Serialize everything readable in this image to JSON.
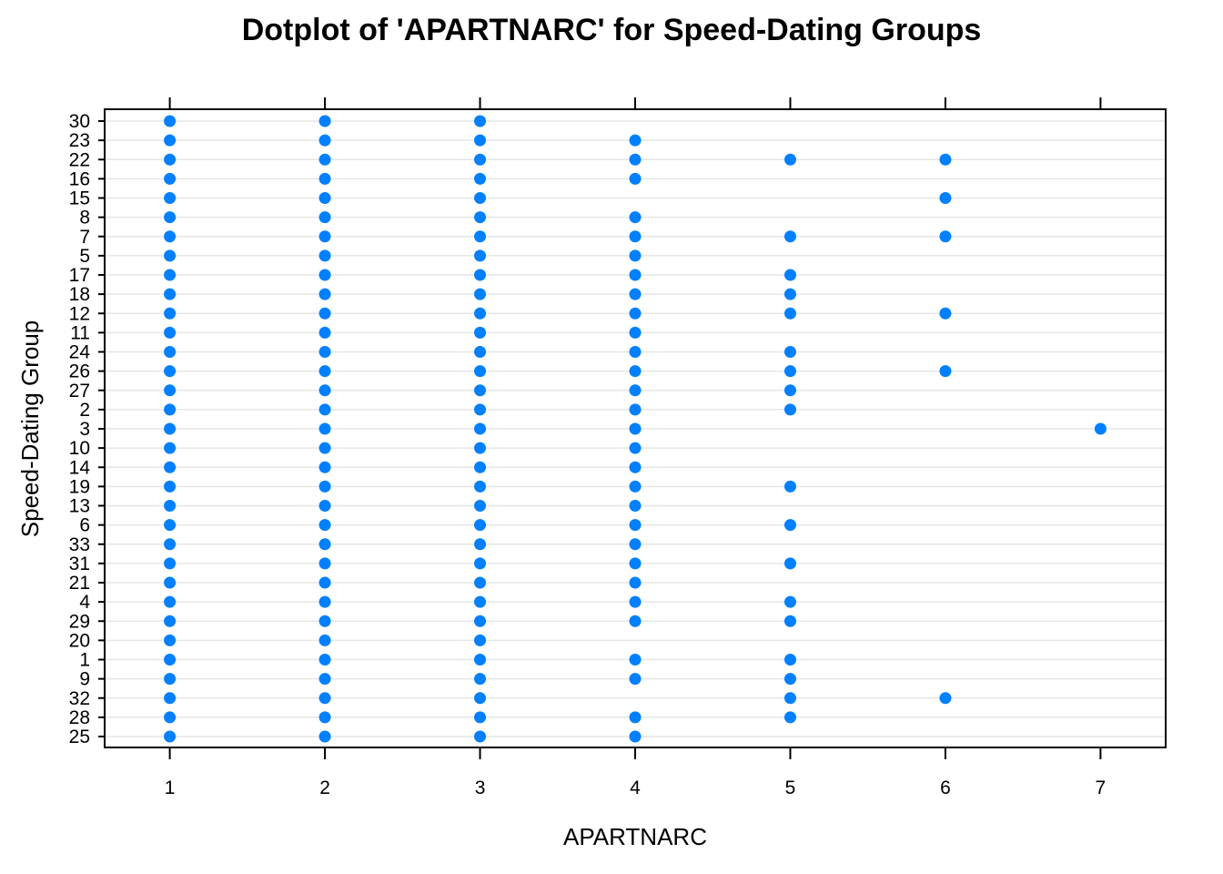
{
  "chart_data": {
    "type": "scatter",
    "subtype": "dotplot",
    "title": "Dotplot of 'APARTNARC' for Speed-Dating Groups",
    "xlabel": "APARTNARC",
    "ylabel": "Speed-Dating Group",
    "xlim": [
      0.58,
      7.42
    ],
    "x_ticks": [
      1,
      2,
      3,
      4,
      5,
      6,
      7
    ],
    "grid": true,
    "marker_color": "#0080ff",
    "groups": [
      "30",
      "23",
      "22",
      "16",
      "15",
      "8",
      "7",
      "5",
      "17",
      "18",
      "12",
      "11",
      "24",
      "26",
      "27",
      "2",
      "3",
      "10",
      "14",
      "19",
      "13",
      "6",
      "33",
      "31",
      "21",
      "4",
      "29",
      "20",
      "1",
      "9",
      "32",
      "28",
      "25"
    ],
    "values": {
      "30": [
        1,
        2,
        3
      ],
      "23": [
        1,
        2,
        3,
        4
      ],
      "22": [
        1,
        2,
        3,
        4,
        5,
        6
      ],
      "16": [
        1,
        2,
        3,
        4
      ],
      "15": [
        1,
        2,
        3,
        6
      ],
      "8": [
        1,
        2,
        3,
        4
      ],
      "7": [
        1,
        2,
        3,
        4,
        5,
        6
      ],
      "5": [
        1,
        2,
        3,
        4
      ],
      "17": [
        1,
        2,
        3,
        4,
        5
      ],
      "18": [
        1,
        2,
        3,
        4,
        5
      ],
      "12": [
        1,
        2,
        3,
        4,
        5,
        6
      ],
      "11": [
        1,
        2,
        3,
        4
      ],
      "24": [
        1,
        2,
        3,
        4,
        5
      ],
      "26": [
        1,
        2,
        3,
        4,
        5,
        6
      ],
      "27": [
        1,
        2,
        3,
        4,
        5
      ],
      "2": [
        1,
        2,
        3,
        4,
        5
      ],
      "3": [
        1,
        2,
        3,
        4,
        7
      ],
      "10": [
        1,
        2,
        3,
        4
      ],
      "14": [
        1,
        2,
        3,
        4
      ],
      "19": [
        1,
        2,
        3,
        4,
        5
      ],
      "13": [
        1,
        2,
        3,
        4
      ],
      "6": [
        1,
        2,
        3,
        4,
        5
      ],
      "33": [
        1,
        2,
        3,
        4
      ],
      "31": [
        1,
        2,
        3,
        4,
        5
      ],
      "21": [
        1,
        2,
        3,
        4
      ],
      "4": [
        1,
        2,
        3,
        4,
        5
      ],
      "29": [
        1,
        2,
        3,
        4,
        5
      ],
      "20": [
        1,
        2,
        3
      ],
      "1": [
        1,
        2,
        3,
        4,
        5
      ],
      "9": [
        1,
        2,
        3,
        4,
        5
      ],
      "32": [
        1,
        2,
        3,
        5,
        6
      ],
      "28": [
        1,
        2,
        3,
        4,
        5
      ],
      "25": [
        1,
        2,
        3,
        4
      ]
    }
  }
}
